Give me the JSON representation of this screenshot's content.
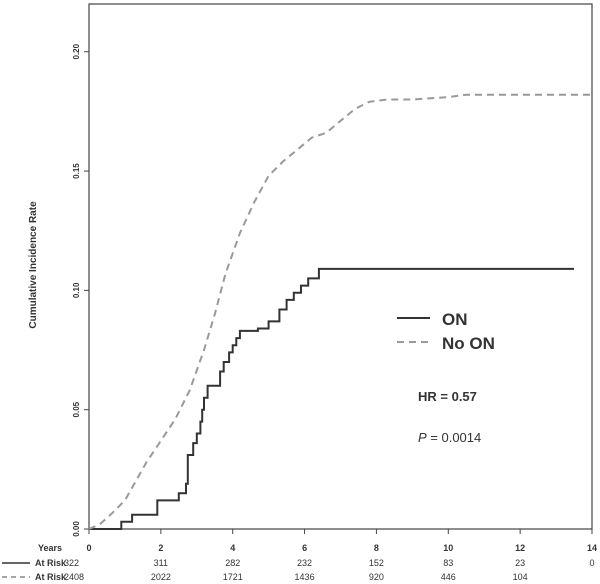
{
  "chart_data": {
    "type": "line",
    "ylabel": "Cumulative Incidence Rate",
    "xlim": [
      0,
      14
    ],
    "ylim": [
      0,
      0.22
    ],
    "x_ticks": [
      0,
      2,
      4,
      6,
      8,
      10,
      12,
      14
    ],
    "y_ticks": [
      0.0,
      0.05,
      0.1,
      0.15,
      0.2
    ],
    "y_tick_labels": [
      "0.00",
      "0.05",
      "0.10",
      "0.15",
      "0.20"
    ],
    "legend_position": "right-center",
    "series": [
      {
        "name": "ON",
        "style": "solid",
        "color": "#333333",
        "step": true,
        "points": [
          [
            0.0,
            0.0
          ],
          [
            0.9,
            0.0
          ],
          [
            0.9,
            0.003
          ],
          [
            1.2,
            0.003
          ],
          [
            1.2,
            0.006
          ],
          [
            1.9,
            0.006
          ],
          [
            1.9,
            0.012
          ],
          [
            2.2,
            0.012
          ],
          [
            2.5,
            0.012
          ],
          [
            2.5,
            0.015
          ],
          [
            2.7,
            0.015
          ],
          [
            2.7,
            0.019
          ],
          [
            2.75,
            0.019
          ],
          [
            2.75,
            0.031
          ],
          [
            2.9,
            0.031
          ],
          [
            2.9,
            0.036
          ],
          [
            3.0,
            0.036
          ],
          [
            3.0,
            0.04
          ],
          [
            3.1,
            0.04
          ],
          [
            3.1,
            0.045
          ],
          [
            3.15,
            0.045
          ],
          [
            3.15,
            0.05
          ],
          [
            3.2,
            0.05
          ],
          [
            3.2,
            0.055
          ],
          [
            3.3,
            0.055
          ],
          [
            3.3,
            0.06
          ],
          [
            3.65,
            0.06
          ],
          [
            3.65,
            0.066
          ],
          [
            3.75,
            0.066
          ],
          [
            3.75,
            0.07
          ],
          [
            3.9,
            0.07
          ],
          [
            3.9,
            0.074
          ],
          [
            4.0,
            0.074
          ],
          [
            4.0,
            0.077
          ],
          [
            4.1,
            0.077
          ],
          [
            4.1,
            0.08
          ],
          [
            4.2,
            0.08
          ],
          [
            4.2,
            0.083
          ],
          [
            4.7,
            0.083
          ],
          [
            4.7,
            0.084
          ],
          [
            5.0,
            0.084
          ],
          [
            5.0,
            0.087
          ],
          [
            5.3,
            0.087
          ],
          [
            5.3,
            0.092
          ],
          [
            5.5,
            0.092
          ],
          [
            5.5,
            0.096
          ],
          [
            5.7,
            0.096
          ],
          [
            5.7,
            0.099
          ],
          [
            5.9,
            0.099
          ],
          [
            5.9,
            0.102
          ],
          [
            6.1,
            0.102
          ],
          [
            6.1,
            0.105
          ],
          [
            6.4,
            0.105
          ],
          [
            6.4,
            0.109
          ],
          [
            13.5,
            0.109
          ]
        ]
      },
      {
        "name": "No ON",
        "style": "dashed",
        "color": "#999999",
        "step": false,
        "points": [
          [
            0.0,
            0.0
          ],
          [
            0.3,
            0.002
          ],
          [
            0.6,
            0.006
          ],
          [
            1.0,
            0.012
          ],
          [
            1.3,
            0.02
          ],
          [
            1.6,
            0.028
          ],
          [
            2.0,
            0.037
          ],
          [
            2.4,
            0.046
          ],
          [
            2.8,
            0.058
          ],
          [
            3.2,
            0.075
          ],
          [
            3.5,
            0.09
          ],
          [
            3.8,
            0.107
          ],
          [
            4.2,
            0.124
          ],
          [
            4.6,
            0.137
          ],
          [
            5.0,
            0.148
          ],
          [
            5.4,
            0.154
          ],
          [
            5.8,
            0.159
          ],
          [
            6.2,
            0.164
          ],
          [
            6.6,
            0.166
          ],
          [
            7.0,
            0.171
          ],
          [
            7.4,
            0.176
          ],
          [
            7.8,
            0.179
          ],
          [
            8.3,
            0.18
          ],
          [
            9.0,
            0.18
          ],
          [
            10.0,
            0.181
          ],
          [
            10.5,
            0.182
          ],
          [
            11.5,
            0.182
          ],
          [
            12.5,
            0.182
          ],
          [
            14.0,
            0.182
          ]
        ]
      }
    ],
    "annotations": {
      "hr_text": "HR = 0.57",
      "p_label": "P",
      "p_value_text": " = 0.0014"
    },
    "risk_table": {
      "header": "Years",
      "rows": [
        {
          "label": "At Risk",
          "style": "solid",
          "values": [
            "322",
            "311",
            "282",
            "232",
            "152",
            "83",
            "23",
            "0"
          ]
        },
        {
          "label": "At Risk",
          "style": "dashed",
          "values": [
            "2408",
            "2022",
            "1721",
            "1436",
            "920",
            "446",
            "104",
            ""
          ]
        }
      ]
    }
  }
}
